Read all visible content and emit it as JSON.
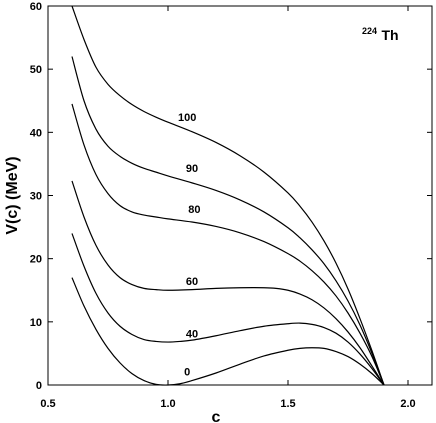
{
  "chart_data": {
    "type": "line",
    "title": "",
    "annotation": {
      "mass_number": "224",
      "element": "Th"
    },
    "xlabel": "c",
    "ylabel": "V(c)  (MeV)",
    "xlim": [
      0.5,
      2.1
    ],
    "ylim": [
      0,
      60
    ],
    "xticks": [
      0.5,
      1.0,
      1.5,
      2.0
    ],
    "xtick_labels": [
      "0.5",
      "1.0",
      "1.5",
      "2.0"
    ],
    "yticks": [
      0,
      10,
      20,
      30,
      40,
      50,
      60
    ],
    "ytick_labels": [
      "0",
      "10",
      "20",
      "30",
      "40",
      "50",
      "60"
    ],
    "grid": false,
    "series": [
      {
        "name": "0",
        "label_at": [
          1.08,
          1.5
        ],
        "points": [
          [
            0.6,
            17.0
          ],
          [
            0.65,
            12.5
          ],
          [
            0.7,
            8.8
          ],
          [
            0.75,
            5.8
          ],
          [
            0.8,
            3.5
          ],
          [
            0.85,
            1.8
          ],
          [
            0.9,
            0.7
          ],
          [
            0.95,
            0.1
          ],
          [
            1.0,
            0.0
          ],
          [
            1.05,
            0.2
          ],
          [
            1.1,
            0.7
          ],
          [
            1.2,
            1.9
          ],
          [
            1.3,
            3.3
          ],
          [
            1.4,
            4.6
          ],
          [
            1.5,
            5.5
          ],
          [
            1.55,
            5.8
          ],
          [
            1.6,
            5.9
          ],
          [
            1.65,
            5.8
          ],
          [
            1.7,
            5.3
          ],
          [
            1.75,
            4.5
          ],
          [
            1.8,
            3.3
          ],
          [
            1.85,
            1.8
          ],
          [
            1.9,
            0.0
          ]
        ]
      },
      {
        "name": "40",
        "label_at": [
          1.1,
          7.5
        ],
        "points": [
          [
            0.6,
            24.0
          ],
          [
            0.65,
            18.8
          ],
          [
            0.7,
            14.5
          ],
          [
            0.75,
            11.4
          ],
          [
            0.8,
            9.3
          ],
          [
            0.85,
            8.0
          ],
          [
            0.9,
            7.2
          ],
          [
            0.95,
            6.9
          ],
          [
            1.0,
            6.8
          ],
          [
            1.05,
            6.9
          ],
          [
            1.1,
            7.1
          ],
          [
            1.2,
            7.8
          ],
          [
            1.3,
            8.6
          ],
          [
            1.4,
            9.3
          ],
          [
            1.5,
            9.7
          ],
          [
            1.55,
            9.8
          ],
          [
            1.6,
            9.6
          ],
          [
            1.65,
            9.1
          ],
          [
            1.7,
            8.2
          ],
          [
            1.75,
            6.8
          ],
          [
            1.8,
            4.9
          ],
          [
            1.85,
            2.6
          ],
          [
            1.9,
            0.0
          ]
        ]
      },
      {
        "name": "60",
        "label_at": [
          1.1,
          15.8
        ],
        "points": [
          [
            0.6,
            32.3
          ],
          [
            0.65,
            26.6
          ],
          [
            0.7,
            22.1
          ],
          [
            0.75,
            19.0
          ],
          [
            0.8,
            17.0
          ],
          [
            0.85,
            15.9
          ],
          [
            0.9,
            15.3
          ],
          [
            0.95,
            15.1
          ],
          [
            1.0,
            15.0
          ],
          [
            1.1,
            15.1
          ],
          [
            1.2,
            15.3
          ],
          [
            1.3,
            15.4
          ],
          [
            1.4,
            15.4
          ],
          [
            1.45,
            15.3
          ],
          [
            1.5,
            15.0
          ],
          [
            1.55,
            14.4
          ],
          [
            1.6,
            13.5
          ],
          [
            1.65,
            12.2
          ],
          [
            1.7,
            10.5
          ],
          [
            1.75,
            8.4
          ],
          [
            1.8,
            5.9
          ],
          [
            1.85,
            3.0
          ],
          [
            1.9,
            0.0
          ]
        ]
      },
      {
        "name": "80",
        "label_at": [
          1.11,
          27.2
        ],
        "points": [
          [
            0.6,
            44.5
          ],
          [
            0.65,
            38.0
          ],
          [
            0.7,
            33.3
          ],
          [
            0.75,
            30.3
          ],
          [
            0.8,
            28.4
          ],
          [
            0.85,
            27.4
          ],
          [
            0.9,
            26.9
          ],
          [
            0.95,
            26.6
          ],
          [
            1.0,
            26.3
          ],
          [
            1.1,
            25.8
          ],
          [
            1.2,
            25.1
          ],
          [
            1.3,
            24.1
          ],
          [
            1.4,
            22.7
          ],
          [
            1.5,
            20.8
          ],
          [
            1.55,
            19.6
          ],
          [
            1.6,
            18.1
          ],
          [
            1.65,
            16.3
          ],
          [
            1.7,
            14.1
          ],
          [
            1.75,
            11.4
          ],
          [
            1.8,
            8.2
          ],
          [
            1.85,
            4.5
          ],
          [
            1.9,
            0.0
          ]
        ]
      },
      {
        "name": "90",
        "label_at": [
          1.1,
          33.7
        ],
        "points": [
          [
            0.6,
            52.0
          ],
          [
            0.65,
            45.0
          ],
          [
            0.7,
            40.5
          ],
          [
            0.75,
            37.8
          ],
          [
            0.8,
            36.2
          ],
          [
            0.85,
            35.1
          ],
          [
            0.9,
            34.3
          ],
          [
            0.95,
            33.7
          ],
          [
            1.0,
            33.1
          ],
          [
            1.1,
            32.0
          ],
          [
            1.2,
            30.8
          ],
          [
            1.3,
            29.3
          ],
          [
            1.4,
            27.4
          ],
          [
            1.5,
            24.9
          ],
          [
            1.55,
            23.3
          ],
          [
            1.6,
            21.4
          ],
          [
            1.65,
            19.2
          ],
          [
            1.7,
            16.5
          ],
          [
            1.75,
            13.3
          ],
          [
            1.8,
            9.5
          ],
          [
            1.85,
            5.0
          ],
          [
            1.9,
            0.0
          ]
        ]
      },
      {
        "name": "100",
        "label_at": [
          1.08,
          41.8
        ],
        "points": [
          [
            0.6,
            60.0
          ],
          [
            0.65,
            54.7
          ],
          [
            0.7,
            50.3
          ],
          [
            0.75,
            47.6
          ],
          [
            0.8,
            45.8
          ],
          [
            0.85,
            44.4
          ],
          [
            0.9,
            43.3
          ],
          [
            0.95,
            42.4
          ],
          [
            1.0,
            41.6
          ],
          [
            1.1,
            40.1
          ],
          [
            1.2,
            38.4
          ],
          [
            1.3,
            36.3
          ],
          [
            1.4,
            33.7
          ],
          [
            1.5,
            30.4
          ],
          [
            1.55,
            28.3
          ],
          [
            1.6,
            25.8
          ],
          [
            1.65,
            22.8
          ],
          [
            1.7,
            19.3
          ],
          [
            1.75,
            15.2
          ],
          [
            1.8,
            10.5
          ],
          [
            1.85,
            5.4
          ],
          [
            1.9,
            0.0
          ]
        ]
      }
    ]
  }
}
